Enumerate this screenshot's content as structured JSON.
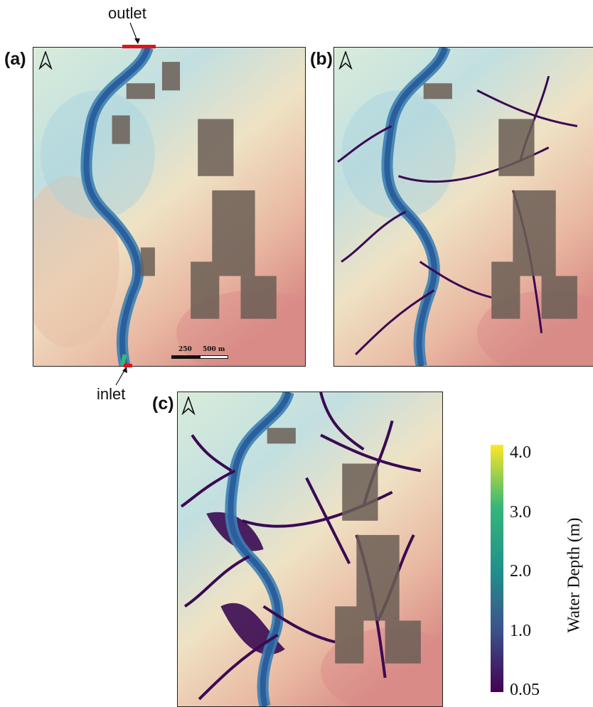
{
  "panels": [
    {
      "label": "(a)"
    },
    {
      "label": "(b)"
    },
    {
      "label": "(c)"
    }
  ],
  "annotations": {
    "outlet": "outlet",
    "inlet": "inlet"
  },
  "scale_bar": {
    "labels": [
      "250",
      "500 m"
    ]
  },
  "legend": {
    "title": "Water Depth (m)",
    "ticks": [
      "4.0",
      "3.0",
      "2.0",
      "1.0",
      "0.05"
    ],
    "colors": [
      "#fde725",
      "#35b779",
      "#21918c",
      "#3b528b",
      "#440154"
    ]
  },
  "icons": {
    "north_arrow": "north-arrow-icon",
    "outlet_marker": "outlet-marker",
    "inlet_marker": "inlet-marker"
  }
}
